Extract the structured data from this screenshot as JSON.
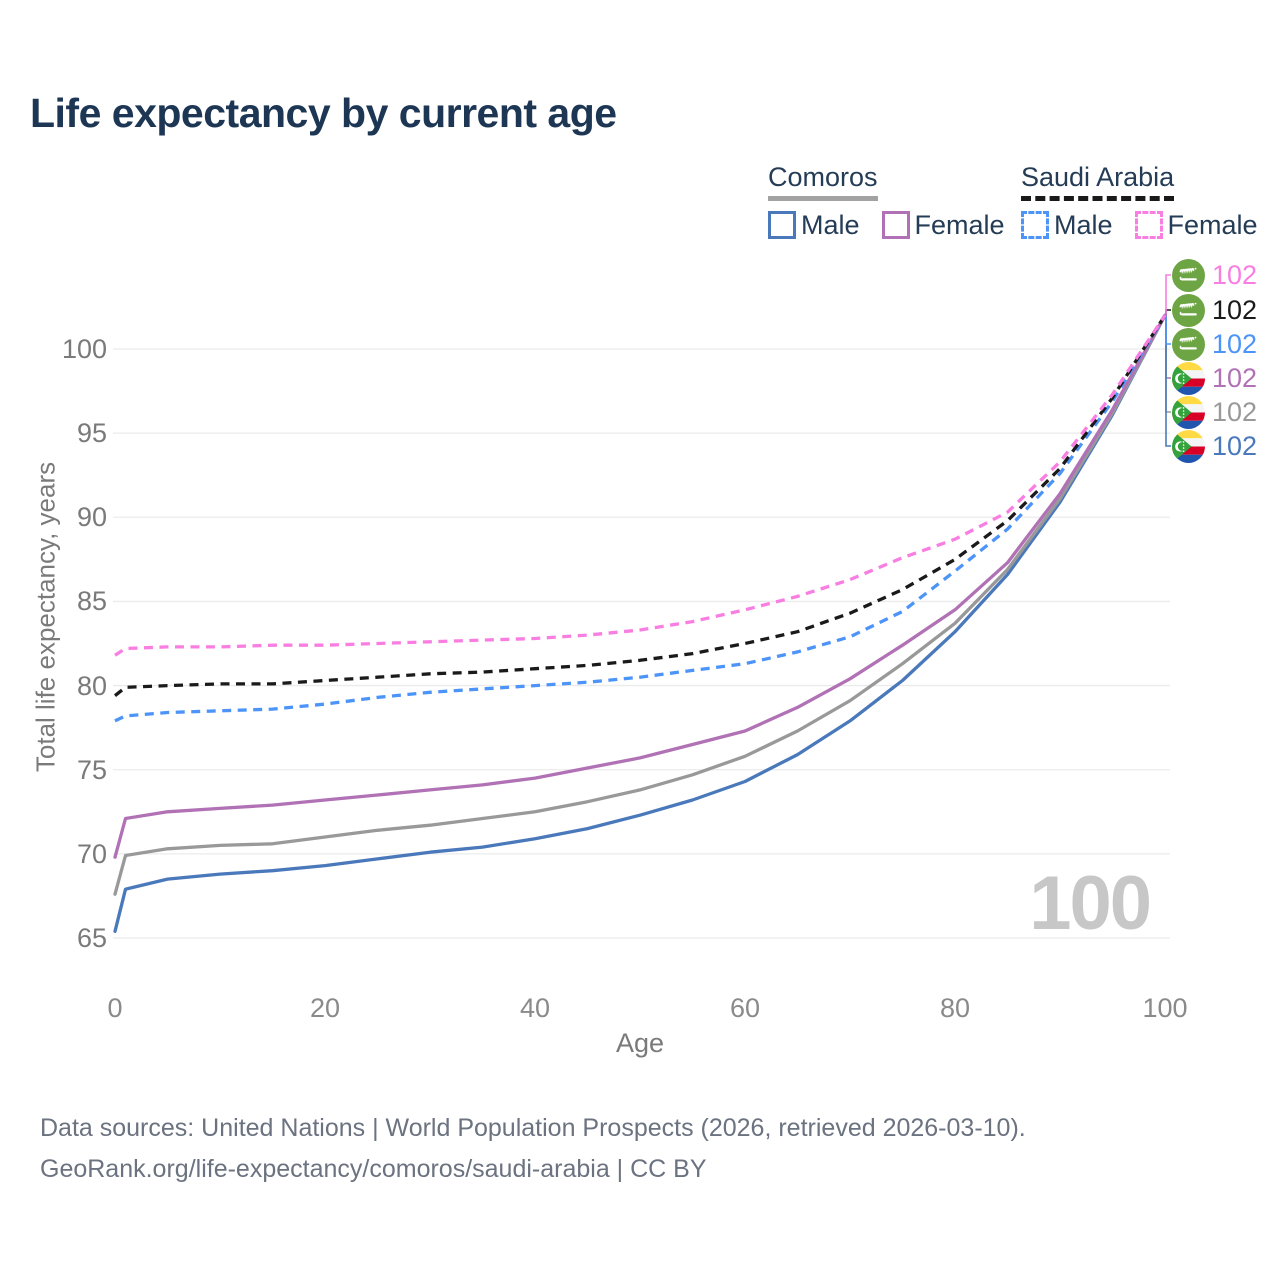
{
  "title": "Life expectancy by current age",
  "watermark": "100",
  "legend": {
    "groups": [
      {
        "label": "Comoros",
        "line_style": "solid",
        "underline_color": "#a2a2a2",
        "items": [
          {
            "label": "Male",
            "color": "#4a79bb",
            "dashed": false
          },
          {
            "label": "Female",
            "color": "#b171b5",
            "dashed": false
          }
        ]
      },
      {
        "label": "Saudi Arabia",
        "line_style": "dashed",
        "underline_color": "#1a1a1a",
        "items": [
          {
            "label": "Male",
            "color": "#4d94f8",
            "dashed": true
          },
          {
            "label": "Female",
            "color": "#f97ee2",
            "dashed": true
          }
        ]
      }
    ]
  },
  "end_labels": [
    {
      "country": "Saudi Arabia",
      "series": "Saudi Arabia Female",
      "flag": "saudi",
      "value": "102",
      "color": "#f97ee2"
    },
    {
      "country": "Saudi Arabia",
      "series": "Saudi Arabia",
      "flag": "saudi",
      "value": "102",
      "color": "#1a1a1a"
    },
    {
      "country": "Saudi Arabia",
      "series": "Saudi Arabia Male",
      "flag": "saudi",
      "value": "102",
      "color": "#4d94f8"
    },
    {
      "country": "Comoros",
      "series": "Comoros Female",
      "flag": "comoros",
      "value": "102",
      "color": "#b171b5"
    },
    {
      "country": "Comoros",
      "series": "Comoros",
      "flag": "comoros",
      "value": "102",
      "color": "#999999"
    },
    {
      "country": "Comoros",
      "series": "Comoros Male",
      "flag": "comoros",
      "value": "102",
      "color": "#4a79bb"
    }
  ],
  "footer": {
    "line1": "Data sources: United Nations | World Population Prospects (2026, retrieved 2026-03-10).",
    "line2": "GeoRank.org/life-expectancy/comoros/saudi-arabia | CC BY"
  },
  "chart_data": {
    "type": "line",
    "title": "Life expectancy by current age",
    "xlabel": "Age",
    "ylabel": "Total life expectancy, years",
    "xlim": [
      0,
      100
    ],
    "ylim": [
      65,
      103
    ],
    "grid": "horizontal",
    "legend_position": "top-right",
    "x_ticks": [
      0,
      20,
      40,
      60,
      80,
      100
    ],
    "y_ticks": [
      65,
      70,
      75,
      80,
      85,
      90,
      95,
      100
    ],
    "ages": [
      0,
      1,
      5,
      10,
      15,
      20,
      25,
      30,
      35,
      40,
      45,
      50,
      55,
      60,
      65,
      70,
      75,
      80,
      85,
      90,
      95,
      100
    ],
    "series": [
      {
        "name": "Comoros Male",
        "country": "Comoros",
        "sex": "male",
        "color": "#4a79bb",
        "dashed": false,
        "values": [
          65.4,
          67.9,
          68.5,
          68.8,
          69.0,
          69.3,
          69.7,
          70.1,
          70.4,
          70.9,
          71.5,
          72.3,
          73.2,
          74.3,
          75.9,
          77.9,
          80.3,
          83.2,
          86.6,
          90.9,
          96.1,
          102
        ]
      },
      {
        "name": "Comoros",
        "country": "Comoros",
        "sex": "both",
        "color": "#999999",
        "dashed": false,
        "values": [
          67.6,
          69.9,
          70.3,
          70.5,
          70.6,
          71.0,
          71.4,
          71.7,
          72.1,
          72.5,
          73.1,
          73.8,
          74.7,
          75.8,
          77.3,
          79.1,
          81.3,
          83.7,
          86.9,
          91.1,
          96.2,
          102
        ]
      },
      {
        "name": "Comoros Female",
        "country": "Comoros",
        "sex": "female",
        "color": "#b171b5",
        "dashed": false,
        "values": [
          69.8,
          72.1,
          72.5,
          72.7,
          72.9,
          73.2,
          73.5,
          73.8,
          74.1,
          74.5,
          75.1,
          75.7,
          76.5,
          77.3,
          78.7,
          80.4,
          82.4,
          84.5,
          87.3,
          91.4,
          96.4,
          102
        ]
      },
      {
        "name": "Saudi Arabia Male",
        "country": "Saudi Arabia",
        "sex": "male",
        "color": "#4d94f8",
        "dashed": true,
        "values": [
          77.9,
          78.2,
          78.4,
          78.5,
          78.6,
          78.9,
          79.3,
          79.6,
          79.8,
          80.0,
          80.2,
          80.5,
          80.9,
          81.3,
          82.0,
          82.9,
          84.4,
          86.8,
          89.3,
          92.6,
          96.9,
          102
        ]
      },
      {
        "name": "Saudi Arabia",
        "country": "Saudi Arabia",
        "sex": "both",
        "color": "#1a1a1a",
        "dashed": true,
        "values": [
          79.4,
          79.9,
          80.0,
          80.1,
          80.1,
          80.3,
          80.5,
          80.7,
          80.8,
          81.0,
          81.2,
          81.5,
          81.9,
          82.5,
          83.2,
          84.3,
          85.7,
          87.5,
          89.8,
          92.9,
          97.1,
          102
        ]
      },
      {
        "name": "Saudi Arabia Female",
        "country": "Saudi Arabia",
        "sex": "female",
        "color": "#f97ee2",
        "dashed": true,
        "values": [
          81.8,
          82.2,
          82.3,
          82.3,
          82.4,
          82.4,
          82.5,
          82.6,
          82.7,
          82.8,
          83.0,
          83.3,
          83.8,
          84.5,
          85.3,
          86.3,
          87.6,
          88.7,
          90.3,
          93.3,
          97.3,
          102
        ]
      }
    ]
  }
}
